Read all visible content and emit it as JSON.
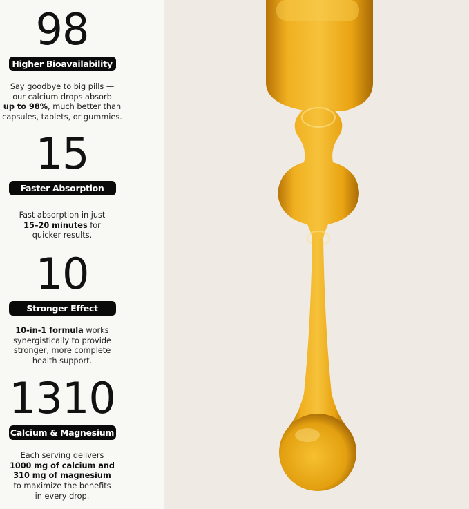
{
  "stats": [
    {
      "number": "98",
      "label": "Higher Bioavailability",
      "desc": [
        "Say goodbye to big pills —",
        "our calcium drops absorb"
      ],
      "bold": "up to 98%",
      "after": ", much better than",
      "desc2": [
        "capsules, tablets, or gummies."
      ]
    },
    {
      "number": "15",
      "label": "Faster Absorption",
      "pre": "Fast absorption in just",
      "bold": "15–20 minutes",
      "after": " for",
      "desc2": [
        "quicker results."
      ]
    },
    {
      "number": "10",
      "label": "Stronger Effect",
      "bold": "10-in-1 formula",
      "after": " works",
      "desc2": [
        "synergistically to provide",
        "stronger, more complete",
        "health support."
      ]
    },
    {
      "number": "1310",
      "label": "Calcium & Magnesium",
      "pre": "Each serving delivers",
      "bold1": "1000 mg of calcium and",
      "bold2": "310 mg of magnesium",
      "desc2": [
        "to maximize the benefits",
        "in every drop."
      ]
    }
  ],
  "colors": {
    "left_bg": "#f8f8f4",
    "right_bg": "#efebe4",
    "oil": "#e8a514",
    "pill": "#0a0a0a"
  },
  "image": "golden-oil-dropper-drip"
}
